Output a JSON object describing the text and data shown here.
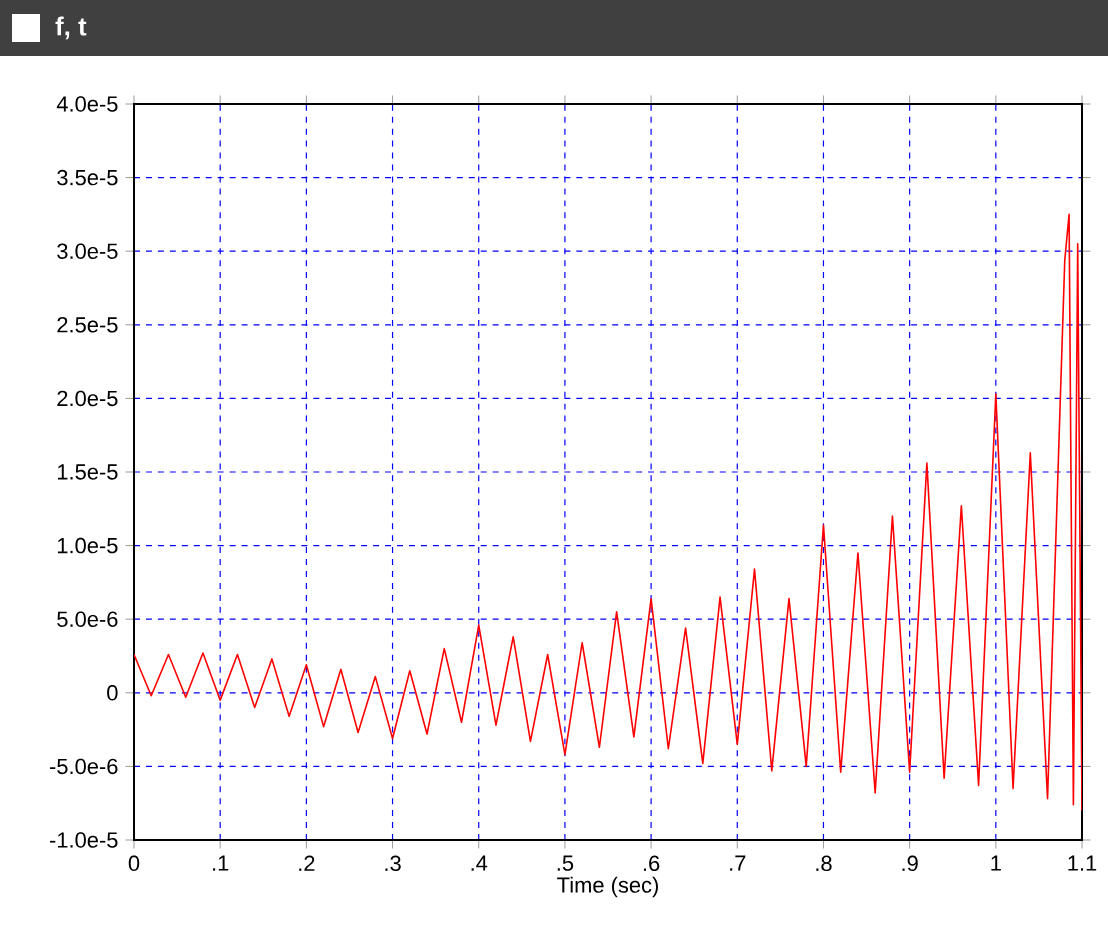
{
  "chart_data": {
    "type": "line",
    "title": "f, t",
    "xlabel": "Time (sec)",
    "xlim": [
      0,
      1.1
    ],
    "ylim": [
      -1e-05,
      4e-05
    ],
    "xticks": [
      0,
      {
        "value": 0.1,
        "label": ".1"
      },
      {
        "value": 0.2,
        "label": ".2"
      },
      {
        "value": 0.3,
        "label": ".3"
      },
      {
        "value": 0.4,
        "label": ".4"
      },
      {
        "value": 0.5,
        "label": ".5"
      },
      {
        "value": 0.6,
        "label": ".6"
      },
      {
        "value": 0.7,
        "label": ".7"
      },
      {
        "value": 0.8,
        "label": ".8"
      },
      {
        "value": 0.9,
        "label": ".9"
      },
      1,
      1.1
    ],
    "yticks": [
      {
        "value": -1e-05,
        "label": "-1.0e-5"
      },
      {
        "value": -5e-06,
        "label": "-5.0e-6"
      },
      0,
      {
        "value": 5e-06,
        "label": "5.0e-6"
      },
      {
        "value": 1e-05,
        "label": "1.0e-5"
      },
      {
        "value": 1.5e-05,
        "label": "1.5e-5"
      },
      {
        "value": 2e-05,
        "label": "2.0e-5"
      },
      {
        "value": 2.5e-05,
        "label": "2.5e-5"
      },
      {
        "value": 3e-05,
        "label": "3.0e-5"
      },
      {
        "value": 3.5e-05,
        "label": "3.5e-5"
      },
      {
        "value": 4e-05,
        "label": "4.0e-5"
      }
    ],
    "grid": true,
    "series": [
      {
        "color": "#ff0000",
        "x": [
          0,
          0.02,
          0.04,
          0.06,
          0.08,
          0.1,
          0.12,
          0.14,
          0.16,
          0.18,
          0.2,
          0.22,
          0.24,
          0.26,
          0.28,
          0.3,
          0.32,
          0.34,
          0.36,
          0.38,
          0.4,
          0.42,
          0.44,
          0.46,
          0.48,
          0.5,
          0.52,
          0.54,
          0.56,
          0.58,
          0.6,
          0.62,
          0.64,
          0.66,
          0.68,
          0.7,
          0.72,
          0.74,
          0.76,
          0.78,
          0.8,
          0.82,
          0.84,
          0.86,
          0.88,
          0.9,
          0.92,
          0.94,
          0.96,
          0.98,
          1.0,
          1.02,
          1.04,
          1.06,
          1.08,
          1.085,
          1.09,
          1.095,
          1.1
        ],
        "values": [
          2.6e-06,
          -2e-07,
          2.6e-06,
          -3e-07,
          2.7e-06,
          -5e-07,
          2.6e-06,
          -1e-06,
          2.3e-06,
          -1.6e-06,
          1.9e-06,
          -2.3e-06,
          1.6e-06,
          -2.7e-06,
          1.1e-06,
          -3.1e-06,
          1.5e-06,
          -2.8e-06,
          3e-06,
          -2e-06,
          4.6e-06,
          -2.2e-06,
          3.8e-06,
          -3.3e-06,
          2.6e-06,
          -4.2e-06,
          3.4e-06,
          -3.7e-06,
          5.5e-06,
          -3e-06,
          6.4e-06,
          -3.8e-06,
          4.4e-06,
          -4.8e-06,
          6.5e-06,
          -3.5e-06,
          8.4e-06,
          -5.3e-06,
          6.4e-06,
          -5e-06,
          1.14e-05,
          -5.4e-06,
          9.5e-06,
          -6.8e-06,
          1.2e-05,
          -5.4e-06,
          1.56e-05,
          -5.8e-06,
          1.27e-05,
          -6.3e-06,
          2.03e-05,
          -6.5e-06,
          1.63e-05,
          -7.2e-06,
          2.94e-05,
          3.25e-05,
          -7.6e-06,
          3.05e-05,
          -8e-06
        ]
      }
    ]
  }
}
